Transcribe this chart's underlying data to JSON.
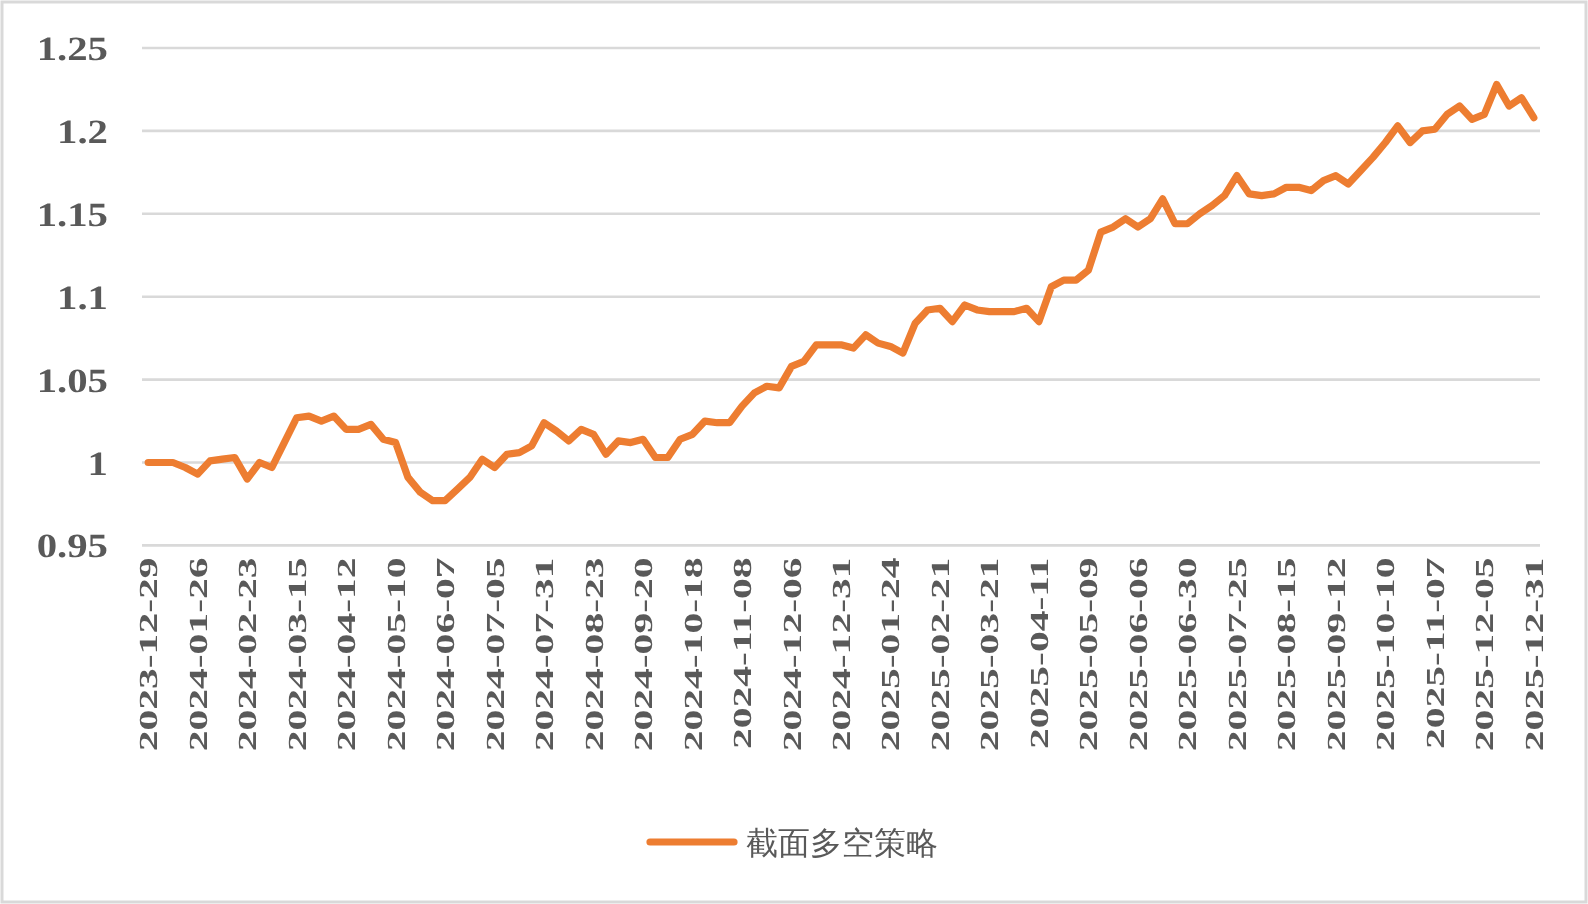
{
  "chart_data": {
    "type": "line",
    "categories": [
      "2023-12-29",
      null,
      null,
      null,
      "2024-01-26",
      null,
      null,
      null,
      "2024-02-23",
      null,
      null,
      null,
      "2024-03-15",
      null,
      null,
      null,
      "2024-04-12",
      null,
      null,
      null,
      "2024-05-10",
      null,
      null,
      null,
      "2024-06-07",
      null,
      null,
      null,
      "2024-07-05",
      null,
      null,
      null,
      "2024-07-31",
      null,
      null,
      null,
      "2024-08-23",
      null,
      null,
      null,
      "2024-09-20",
      null,
      null,
      null,
      "2024-10-18",
      null,
      null,
      null,
      "2024-11-08",
      null,
      null,
      null,
      "2024-12-06",
      null,
      null,
      null,
      "2024-12-31",
      null,
      null,
      null,
      "2025-01-24",
      null,
      null,
      null,
      "2025-02-21",
      null,
      null,
      null,
      "2025-03-21",
      null,
      null,
      null,
      "2025-04-11",
      null,
      null,
      null,
      "2025-05-09",
      null,
      null,
      null,
      "2025-06-06",
      null,
      null,
      null,
      "2025-06-30",
      null,
      null,
      null,
      "2025-07-25",
      null,
      null,
      null,
      "2025-08-15",
      null,
      null,
      null,
      "2025-09-12",
      null,
      null,
      null,
      "2025-10-10",
      null,
      null,
      null,
      "2025-11-07",
      null,
      null,
      null,
      "2025-12-05",
      null,
      null,
      null,
      "2025-12-31"
    ],
    "series": [
      {
        "name": "截面多空策略",
        "color": "#ed7d31",
        "values": [
          1.0,
          1.0,
          1.0,
          0.997,
          0.993,
          1.001,
          1.002,
          1.003,
          0.99,
          1.0,
          0.997,
          1.012,
          1.027,
          1.028,
          1.025,
          1.028,
          1.02,
          1.02,
          1.023,
          1.014,
          1.012,
          0.991,
          0.982,
          0.977,
          0.977,
          0.984,
          0.991,
          1.002,
          0.997,
          1.005,
          1.006,
          1.01,
          1.024,
          1.019,
          1.013,
          1.02,
          1.017,
          1.005,
          1.013,
          1.012,
          1.014,
          1.003,
          1.003,
          1.014,
          1.017,
          1.025,
          1.024,
          1.024,
          1.034,
          1.042,
          1.046,
          1.045,
          1.058,
          1.061,
          1.071,
          1.071,
          1.071,
          1.069,
          1.077,
          1.072,
          1.07,
          1.066,
          1.084,
          1.092,
          1.093,
          1.085,
          1.095,
          1.092,
          1.091,
          1.091,
          1.091,
          1.093,
          1.085,
          1.106,
          1.11,
          1.11,
          1.116,
          1.139,
          1.142,
          1.147,
          1.142,
          1.147,
          1.159,
          1.144,
          1.144,
          1.15,
          1.155,
          1.161,
          1.173,
          1.162,
          1.161,
          1.162,
          1.166,
          1.166,
          1.164,
          1.17,
          1.173,
          1.168,
          1.176,
          1.184,
          1.193,
          1.203,
          1.193,
          1.2,
          1.201,
          1.21,
          1.215,
          1.207,
          1.21,
          1.228,
          1.215,
          1.22,
          1.208
        ]
      }
    ],
    "ylim": [
      0.95,
      1.25
    ],
    "yticks": [
      0.95,
      1,
      1.05,
      1.1,
      1.15,
      1.2,
      1.25
    ],
    "grid": "y",
    "legend": "bottom"
  }
}
